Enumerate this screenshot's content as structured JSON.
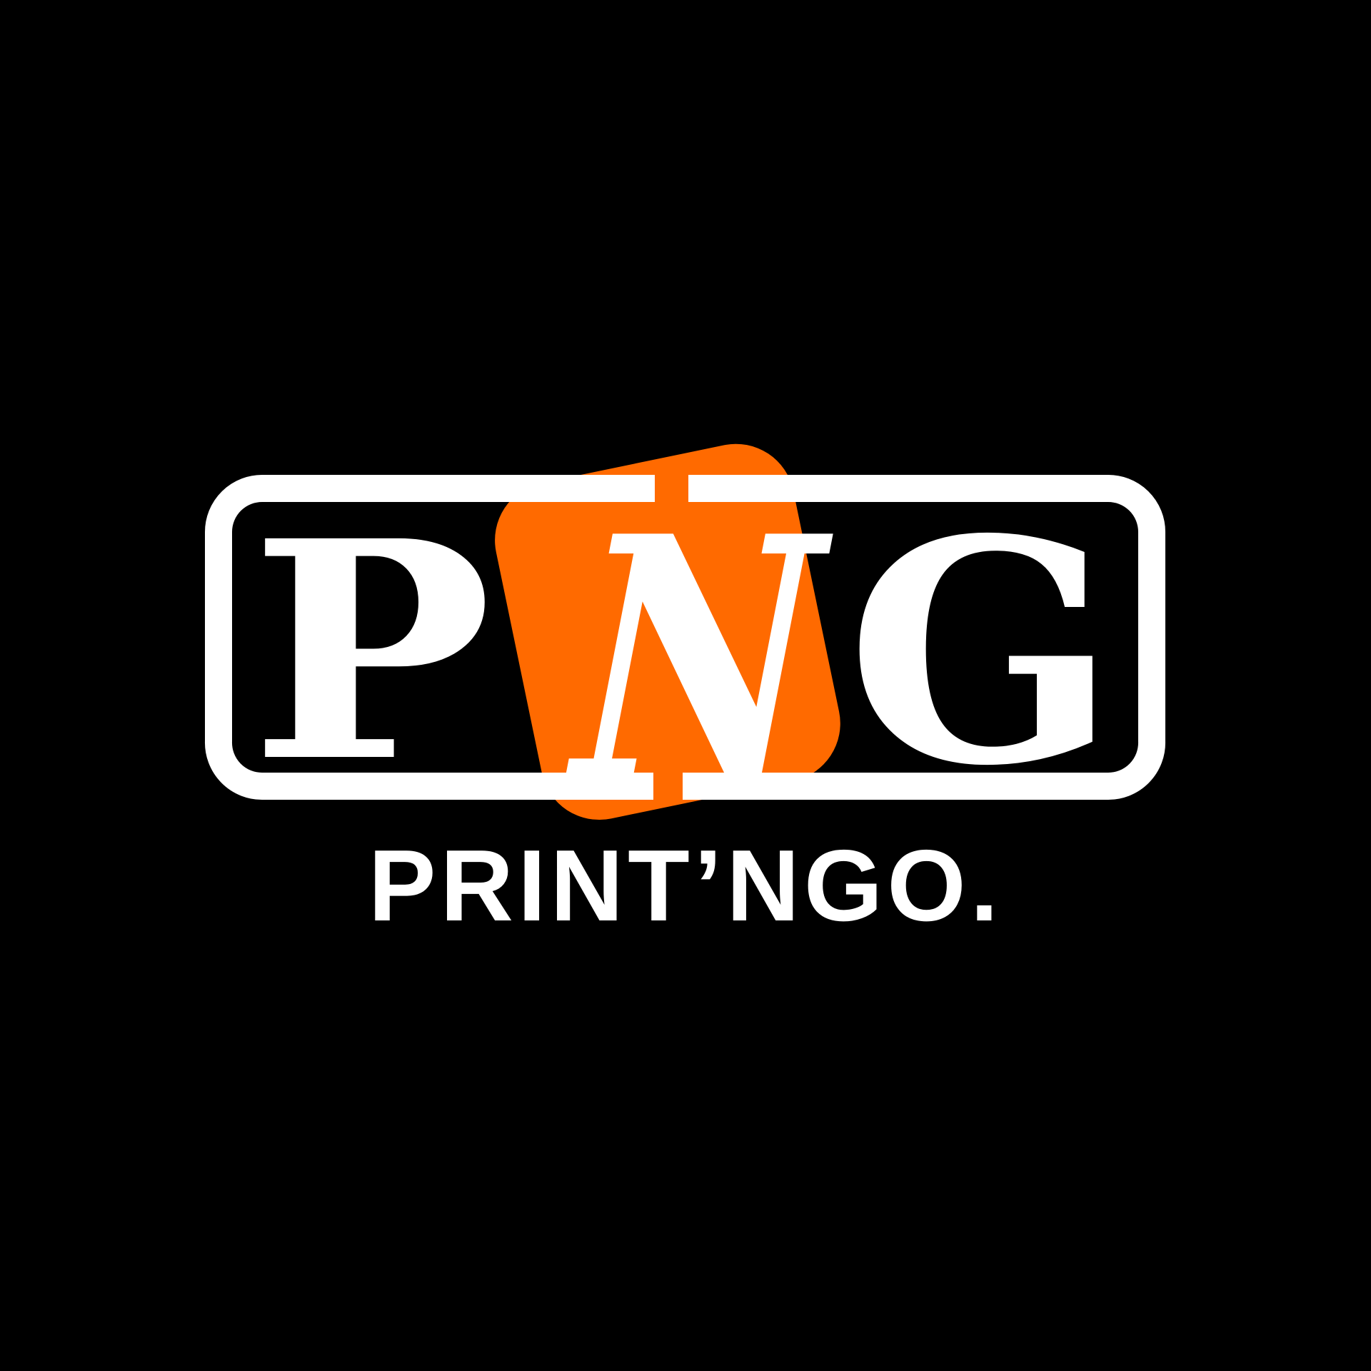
{
  "logo": {
    "letters": [
      "P",
      "N",
      "G"
    ],
    "tagline": "PRINT’NGO.",
    "colors": {
      "background": "#000000",
      "foreground": "#ffffff",
      "accent": "#ff6a00"
    }
  }
}
